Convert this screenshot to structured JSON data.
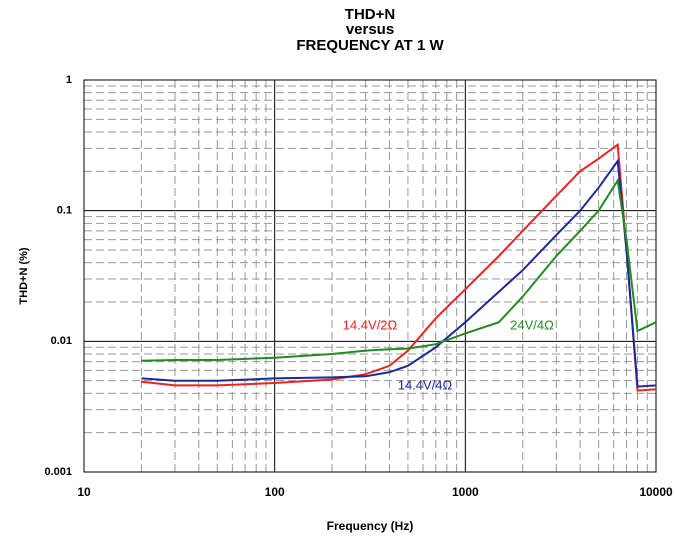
{
  "chart_data": {
    "type": "line",
    "title": [
      "THD+N",
      "versus",
      "FREQUENCY AT 1 W"
    ],
    "xlabel": "Frequency (Hz)",
    "ylabel": "THD+N (%)",
    "xscale": "log",
    "yscale": "log",
    "xlim": [
      10,
      10000
    ],
    "ylim": [
      0.001,
      1
    ],
    "xticks": [
      10,
      100,
      1000,
      10000
    ],
    "yticks": [
      0.001,
      0.01,
      0.1,
      1
    ],
    "grid": true,
    "minor_grid": true,
    "x": [
      20,
      30,
      50,
      100,
      200,
      300,
      400,
      500,
      700,
      1000,
      1500,
      2000,
      3000,
      4000,
      5000,
      6300,
      7000,
      8000,
      10000
    ],
    "series": [
      {
        "name": "14.4V/2Ω",
        "color": "#ee2222",
        "values": [
          0.0049,
          0.0046,
          0.0046,
          0.0048,
          0.0051,
          0.0056,
          0.0065,
          0.0085,
          0.015,
          0.025,
          0.045,
          0.07,
          0.13,
          0.2,
          0.25,
          0.32,
          0.05,
          0.0042,
          0.0043
        ]
      },
      {
        "name": "14.4V/4Ω",
        "color": "#1a2a99",
        "values": [
          0.0052,
          0.005,
          0.005,
          0.0052,
          0.0053,
          0.0054,
          0.0058,
          0.0065,
          0.009,
          0.014,
          0.024,
          0.035,
          0.065,
          0.1,
          0.15,
          0.24,
          0.05,
          0.0045,
          0.0046
        ]
      },
      {
        "name": "24V/4Ω",
        "color": "#228b22",
        "values": [
          0.0071,
          0.0072,
          0.0072,
          0.0075,
          0.008,
          0.0085,
          0.0087,
          0.0088,
          0.0095,
          0.0115,
          0.014,
          0.022,
          0.045,
          0.07,
          0.1,
          0.17,
          0.06,
          0.012,
          0.014
        ]
      }
    ]
  }
}
